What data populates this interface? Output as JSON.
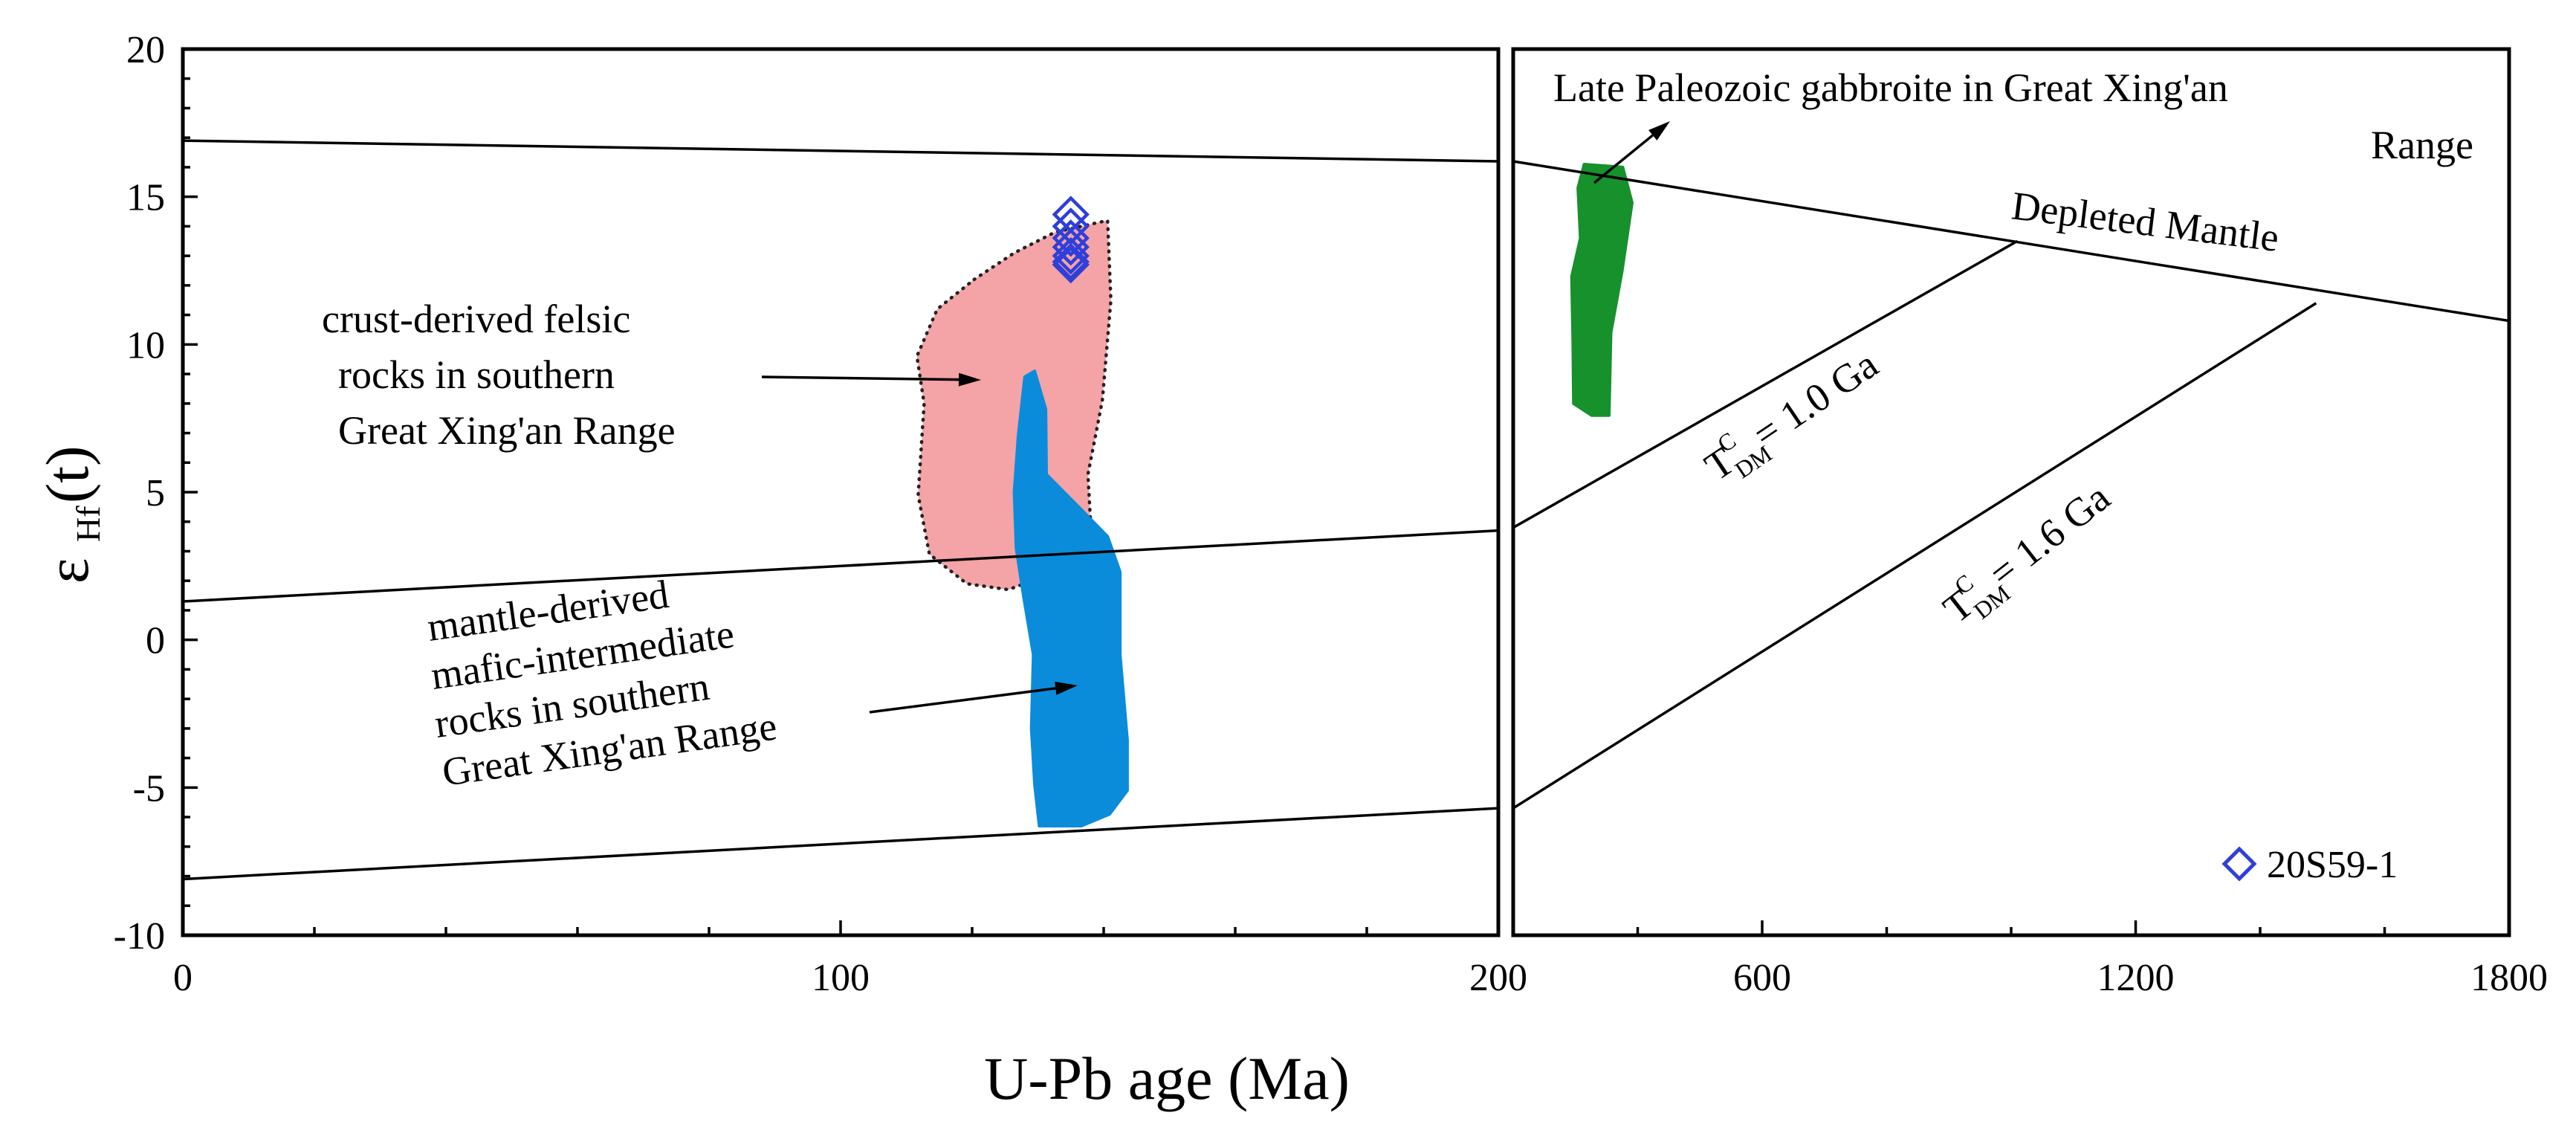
{
  "chart_data": {
    "type": "scatter",
    "xlabel": "U-Pb age (Ma)",
    "ylabel": "εHf(t)",
    "ylabel_main": "ε",
    "ylabel_sub": "Hf",
    "ylabel_tail": "(t)",
    "ylim": [
      -10,
      20
    ],
    "y_ticks": [
      -10,
      -5,
      0,
      5,
      10,
      15,
      20
    ],
    "y_tick_labels": [
      "-10",
      "-5",
      "0",
      "5",
      "10",
      "15",
      "20"
    ],
    "panels": [
      {
        "name": "left",
        "xlim": [
          0,
          200
        ],
        "x_ticks": [
          0,
          100,
          200
        ],
        "x_tick_labels": [
          "0",
          "100",
          "200"
        ],
        "minor_step": 20,
        "reference_lines": [
          {
            "x": [
              0,
              200
            ],
            "y": [
              16.9,
              16.2
            ]
          },
          {
            "x": [
              0,
              200
            ],
            "y": [
              1.3,
              3.7
            ]
          },
          {
            "x": [
              0,
              200
            ],
            "y": [
              -8.1,
              -5.7
            ]
          }
        ],
        "fields": [
          {
            "name": "crust-derived felsic rocks field",
            "color": "#f4a3a6",
            "outline": "dotted",
            "points": [
              [
                120.3,
                12.2
              ],
              [
                126.4,
                13.1
              ],
              [
                132.6,
                13.8
              ],
              [
                140.6,
                14.2
              ],
              [
                141.1,
                11.5
              ],
              [
                139.8,
                8.1
              ],
              [
                137.6,
                5.6
              ],
              [
                138.1,
                3.6
              ],
              [
                136.4,
                1.0
              ],
              [
                134.6,
                0.6
              ],
              [
                132.8,
                2.3
              ],
              [
                125.5,
                1.7
              ],
              [
                119.2,
                1.9
              ],
              [
                113.5,
                2.9
              ],
              [
                111.8,
                4.9
              ],
              [
                112.7,
                8.0
              ],
              [
                111.6,
                9.6
              ],
              [
                114.7,
                11.2
              ]
            ]
          },
          {
            "name": "mantle-derived mafic-intermediate rocks field",
            "color": "#0a8cdb",
            "outline": "none",
            "points": [
              [
                129.5,
                9.1
              ],
              [
                131.2,
                7.8
              ],
              [
                131.3,
                5.6
              ],
              [
                136.2,
                4.5
              ],
              [
                140.6,
                3.5
              ],
              [
                142.5,
                2.3
              ],
              [
                142.5,
                -0.5
              ],
              [
                143.6,
                -3.4
              ],
              [
                143.6,
                -5.1
              ],
              [
                140.9,
                -5.9
              ],
              [
                136.6,
                -6.3
              ],
              [
                130.2,
                -6.3
              ],
              [
                129.5,
                -4.9
              ],
              [
                129.0,
                -3.0
              ],
              [
                129.3,
                -0.5
              ],
              [
                127.8,
                1.5
              ],
              [
                126.7,
                3.1
              ],
              [
                126.4,
                5.0
              ],
              [
                127.0,
                6.9
              ],
              [
                128.0,
                8.9
              ]
            ]
          }
        ],
        "series": [
          {
            "name": "20S59-1",
            "marker": "diamond",
            "color": "#2f3fd9",
            "x": [
              135,
              135,
              135,
              135,
              135,
              135,
              135
            ],
            "y": [
              14.4,
              14.0,
              13.6,
              13.3,
              13.0,
              12.8,
              12.7
            ]
          }
        ]
      },
      {
        "name": "right",
        "xlim": [
          200,
          1800
        ],
        "x_ticks": [
          200,
          600,
          1200,
          1800
        ],
        "x_tick_labels": [
          "200",
          "600",
          "1200",
          "1800"
        ],
        "minor_step": 200,
        "reference_lines": [
          {
            "x": [
              200,
              1800
            ],
            "y": [
              16.2,
              10.8
            ]
          },
          {
            "x": [
              200,
              1010
            ],
            "y": [
              3.8,
              13.5
            ]
          },
          {
            "x": [
              200,
              1490
            ],
            "y": [
              -5.7,
              11.4
            ]
          }
        ],
        "fields": [
          {
            "name": "Late Paleozoic gabbroite field",
            "color": "#16912b",
            "outline": "none",
            "points": [
              [
                314,
                16.1
              ],
              [
                376,
                16.0
              ],
              [
                391,
                14.8
              ],
              [
                375,
                12.5
              ],
              [
                357,
                10.4
              ],
              [
                354,
                7.6
              ],
              [
                326,
                7.6
              ],
              [
                297,
                8.0
              ],
              [
                296,
                10.0
              ],
              [
                294,
                12.3
              ],
              [
                308,
                13.6
              ],
              [
                304,
                15.3
              ]
            ]
          }
        ]
      }
    ],
    "annotations": {
      "felsic": [
        "crust-derived  felsic",
        "rocks in  southern",
        "Great  Xing'an Range"
      ],
      "mafic": [
        "mantle-derived",
        "mafic-intermediate",
        "rocks in southern",
        "Great Xing'an Range"
      ],
      "gabbro": [
        "Late Paleozoic gabbroite in  Great Xing'an",
        "Range"
      ],
      "depleted_mantle": "Depleted Mantle",
      "tdm1": {
        "main": "T",
        "sup": "C",
        "sub": "DM",
        "value": " = 1.0 Ga"
      },
      "tdm2": {
        "main": "T",
        "sup": "C",
        "sub": "DM",
        "value": " = 1.6 Ga"
      }
    },
    "legend": {
      "label": "20S59-1",
      "position": "bottom-right",
      "color": "#2f3fd9"
    }
  }
}
